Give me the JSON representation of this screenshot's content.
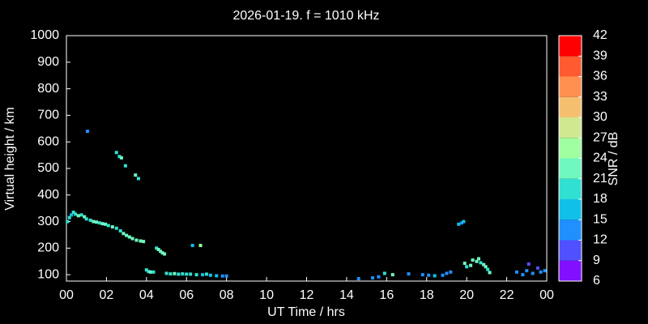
{
  "chart_data": {
    "type": "scatter",
    "title": "2026-01-19. f = 1010 kHz",
    "x_label": "UT Time / hrs",
    "y_label": "Virtual height / km",
    "xlim": [
      0,
      24
    ],
    "ylim": [
      76,
      1000
    ],
    "xticks": [
      {
        "value": 0,
        "label": "00"
      },
      {
        "value": 2,
        "label": "02"
      },
      {
        "value": 4,
        "label": "04"
      },
      {
        "value": 6,
        "label": "06"
      },
      {
        "value": 8,
        "label": "08"
      },
      10,
      12,
      14,
      16,
      18,
      20,
      22,
      {
        "value": 24,
        "label": "00"
      }
    ],
    "yticks": [
      100,
      200,
      300,
      400,
      500,
      600,
      700,
      800,
      900,
      1000
    ],
    "colorbar": {
      "label": "SNR / dB",
      "lim": [
        6,
        42
      ],
      "ticks": [
        6,
        9,
        12,
        15,
        18,
        21,
        24,
        27,
        30,
        33,
        36,
        39,
        42
      ],
      "colors": [
        "#8010ff",
        "#5050ff",
        "#2090ff",
        "#10c0e8",
        "#30e0d0",
        "#70f8c0",
        "#a0ffa0",
        "#d0e890",
        "#f4c070",
        "#ff9050",
        "#ff5a30",
        "#ff0000"
      ]
    },
    "x": [
      0.05,
      0.15,
      0.25,
      0.35,
      0.45,
      0.6,
      0.75,
      0.9,
      1.0,
      1.2,
      1.35,
      1.5,
      1.65,
      1.8,
      1.95,
      2.1,
      2.3,
      2.5,
      2.7,
      2.85,
      3.0,
      3.15,
      3.3,
      3.5,
      3.7,
      3.85,
      4.5,
      4.6,
      4.7,
      4.8,
      4.9,
      4.0,
      4.1,
      4.2,
      4.35,
      5.0,
      5.2,
      5.4,
      5.6,
      5.8,
      6.0,
      6.2,
      6.5,
      6.8,
      7.0,
      7.2,
      7.5,
      7.8,
      8.0,
      6.3,
      6.7,
      1.05,
      2.5,
      2.65,
      2.75,
      2.95,
      3.45,
      3.6,
      14.6,
      15.3,
      15.6,
      15.9,
      16.3,
      17.1,
      17.8,
      18.1,
      18.4,
      18.8,
      19.0,
      19.2,
      19.6,
      19.75,
      19.85,
      19.9,
      20.0,
      20.2,
      20.3,
      20.5,
      20.6,
      20.7,
      20.85,
      20.95,
      21.05,
      21.15,
      22.5,
      22.8,
      23.0,
      23.1,
      23.3,
      23.55,
      23.7,
      23.9
    ],
    "values": [
      300,
      315,
      325,
      335,
      328,
      322,
      325,
      318,
      310,
      305,
      300,
      298,
      295,
      292,
      290,
      285,
      280,
      275,
      265,
      255,
      248,
      242,
      236,
      230,
      227,
      225,
      200,
      195,
      188,
      182,
      178,
      118,
      112,
      110,
      110,
      105,
      103,
      104,
      102,
      103,
      102,
      102,
      100,
      100,
      102,
      98,
      96,
      95,
      95,
      210,
      210,
      640,
      560,
      545,
      540,
      510,
      475,
      462,
      85,
      88,
      92,
      105,
      100,
      103,
      100,
      98,
      96,
      98,
      105,
      110,
      290,
      295,
      300,
      143,
      130,
      135,
      155,
      150,
      160,
      145,
      138,
      130,
      120,
      108,
      110,
      100,
      115,
      140,
      105,
      125,
      110,
      115
    ],
    "snr": [
      19,
      20,
      17,
      19,
      20,
      21,
      20,
      22,
      19,
      20,
      22,
      21,
      20,
      22,
      21,
      20,
      21,
      19,
      20,
      22,
      21,
      23,
      22,
      21,
      23,
      22,
      20,
      22,
      21,
      23,
      22,
      20,
      19,
      21,
      20,
      19,
      20,
      21,
      19,
      20,
      18,
      20,
      19,
      17,
      19,
      16,
      15,
      14,
      13,
      17,
      26,
      12,
      20,
      19,
      21,
      20,
      21,
      20,
      13,
      12,
      14,
      20,
      21,
      13,
      14,
      12,
      15,
      14,
      13,
      12,
      16,
      14,
      15,
      21,
      20,
      22,
      23,
      22,
      21,
      20,
      22,
      21,
      20,
      22,
      13,
      12,
      14,
      10,
      13,
      11,
      12,
      13
    ]
  }
}
